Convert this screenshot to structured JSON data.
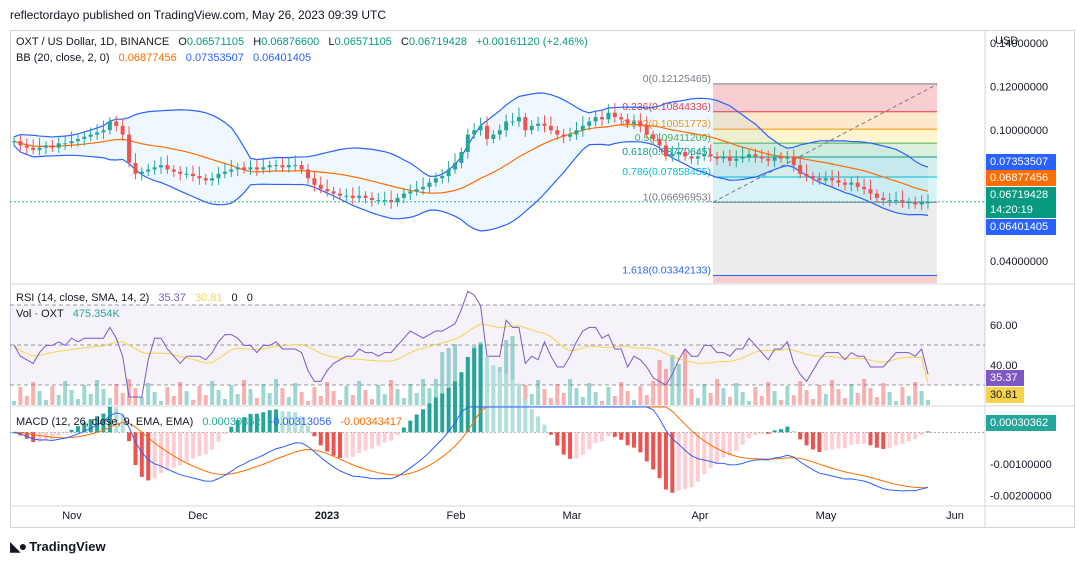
{
  "header": {
    "publisher": "reflectordayo published on TradingView.com, May 26, 2023 09:39 UTC"
  },
  "main_legend": {
    "symbol": "OXT / US Dollar, 1D, BINANCE",
    "o_label": "O",
    "o_value": "0.06571105",
    "h_label": "H",
    "h_value": "0.06876600",
    "l_label": "L",
    "l_value": "0.06571105",
    "c_label": "C",
    "c_value": "0.06719428",
    "change": "+0.00161120 (+2.46%)",
    "bb_label": "BB (20, close, 2, 0)",
    "bb_basis": "0.06877456",
    "bb_upper": "0.07353507",
    "bb_lower": "0.06401405"
  },
  "rsi_legend": {
    "label": "RSI (14, close, SMA, 14, 2)",
    "rsi": "35.37",
    "sma": "30.81",
    "z1": "0",
    "z2": "0"
  },
  "vol_legend": {
    "label": "Vol · OXT",
    "value": "475.354K"
  },
  "macd_legend": {
    "label": "MACD (12, 26, close, 9, EMA, EMA)",
    "hist": "0.00030362",
    "macd": "-0.00313056",
    "signal": "-0.00343417"
  },
  "price_axis": {
    "currency": "USD",
    "ticks": [
      "0.14000000",
      "0.12000000",
      "0.10000000",
      "0.04000000"
    ]
  },
  "rsi_axis": {
    "ticks": [
      "60.00",
      "40.00"
    ]
  },
  "macd_axis": {
    "ticks": [
      "-0.00100000",
      "-0.00200000"
    ]
  },
  "tags": {
    "bb_upper": "0.07353507",
    "bb_basis": "0.06877456",
    "price": "0.06719428",
    "countdown": "14:20:19",
    "bb_lower": "0.06401405",
    "rsi": "35.37",
    "rsi_sma": "30.81",
    "macd_hist": "0.00030362"
  },
  "fib_levels": [
    {
      "label": "0(0.12125465)",
      "color": "#787b86"
    },
    {
      "label": "0.236(0.10844336)",
      "color": "#f23645"
    },
    {
      "label": "0.382(0.10051773)",
      "color": "#ff9800"
    },
    {
      "label": "0.5(0.09411209)",
      "color": "#4caf50"
    },
    {
      "label": "0.618(0.08770645)",
      "color": "#089981"
    },
    {
      "label": "0.786(0.07858455)",
      "color": "#00bcd4"
    },
    {
      "label": "1(0.06696953)",
      "color": "#787b86"
    },
    {
      "label": "1.618(0.03342133)",
      "color": "#2962ff"
    }
  ],
  "time_axis": [
    "Nov",
    "Dec",
    "2023",
    "Feb",
    "Mar",
    "Apr",
    "May",
    "Jun"
  ],
  "footer": {
    "brand": "TradingView"
  },
  "colors": {
    "up": "#26a69a",
    "down": "#ef5350",
    "bb_band": "#2962ff",
    "bb_basis": "#ff6d00",
    "rsi": "#7e57c2",
    "rsi_sma": "#f7d34a",
    "macd": "#2962ff",
    "signal": "#ff6d00"
  },
  "chart_data": {
    "type": "candlestick",
    "symbol": "OXT / US Dollar, 1D, BINANCE",
    "x_labels": [
      "Nov",
      "Dec",
      "2023",
      "Feb",
      "Mar",
      "Apr",
      "May",
      "Jun"
    ],
    "price_ylim": [
      0.03,
      0.145
    ],
    "close_approx": [
      0.095,
      0.093,
      0.092,
      0.091,
      0.092,
      0.093,
      0.092,
      0.094,
      0.094,
      0.095,
      0.096,
      0.097,
      0.098,
      0.099,
      0.1,
      0.104,
      0.102,
      0.098,
      0.085,
      0.08,
      0.081,
      0.082,
      0.083,
      0.084,
      0.082,
      0.081,
      0.08,
      0.08,
      0.079,
      0.078,
      0.077,
      0.078,
      0.08,
      0.081,
      0.082,
      0.083,
      0.082,
      0.083,
      0.082,
      0.083,
      0.084,
      0.084,
      0.083,
      0.084,
      0.084,
      0.082,
      0.078,
      0.075,
      0.073,
      0.072,
      0.071,
      0.07,
      0.07,
      0.069,
      0.07,
      0.069,
      0.068,
      0.068,
      0.068,
      0.067,
      0.069,
      0.071,
      0.072,
      0.073,
      0.074,
      0.076,
      0.078,
      0.079,
      0.082,
      0.085,
      0.09,
      0.098,
      0.1,
      0.102,
      0.096,
      0.098,
      0.1,
      0.104,
      0.104,
      0.106,
      0.1,
      0.102,
      0.103,
      0.102,
      0.1,
      0.098,
      0.097,
      0.098,
      0.1,
      0.102,
      0.104,
      0.106,
      0.105,
      0.108,
      0.106,
      0.105,
      0.103,
      0.104,
      0.102,
      0.098,
      0.096,
      0.093,
      0.088,
      0.089,
      0.09,
      0.088,
      0.087,
      0.088,
      0.089,
      0.088,
      0.087,
      0.088,
      0.086,
      0.087,
      0.088,
      0.089,
      0.088,
      0.087,
      0.086,
      0.088,
      0.087,
      0.088,
      0.084,
      0.08,
      0.079,
      0.078,
      0.077,
      0.078,
      0.077,
      0.076,
      0.075,
      0.076,
      0.074,
      0.073,
      0.071,
      0.069,
      0.068,
      0.068,
      0.068,
      0.067,
      0.067,
      0.066,
      0.067,
      0.067
    ],
    "bb_last": {
      "upper": 0.07353507,
      "basis": 0.06877456,
      "lower": 0.06401405
    },
    "rsi_ylim": [
      20,
      80
    ],
    "rsi_last": 35.37,
    "rsi_sma_last": 30.81,
    "macd_ylim": [
      -0.0023,
      0.0008
    ],
    "macd_last": -0.00313056,
    "signal_last": -0.00343417,
    "hist_last": 0.00030362
  }
}
